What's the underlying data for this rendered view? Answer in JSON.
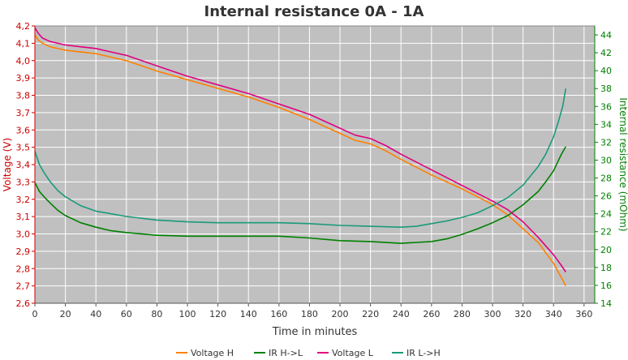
{
  "chart_data": {
    "type": "line",
    "title": "Internal resistance  0A - 1A",
    "xlabel": "Time in minutes",
    "ylabel_left": "Voltage (V)",
    "ylabel_right": "Internal resistance (mOhm)",
    "xlim": [
      0,
      367
    ],
    "xticks": [
      "0",
      "20",
      "40",
      "60",
      "80",
      "100",
      "120",
      "140",
      "160",
      "180",
      "200",
      "220",
      "240",
      "260",
      "280",
      "300",
      "320",
      "340",
      "360"
    ],
    "ylim_left": [
      2.6,
      4.2
    ],
    "yticks_left": [
      "2,6",
      "2,7",
      "2,8",
      "2,9",
      "3,0",
      "3,1",
      "3,2",
      "3,3",
      "3,4",
      "3,5",
      "3,6",
      "3,7",
      "3,8",
      "3,9",
      "4,0",
      "4,1",
      "4,2"
    ],
    "ylim_right": [
      14,
      45
    ],
    "yticks_right": [
      "14",
      "16",
      "18",
      "20",
      "22",
      "24",
      "26",
      "28",
      "30",
      "32",
      "34",
      "36",
      "38",
      "40",
      "42",
      "44"
    ],
    "grid": true,
    "legend_position": "bottom",
    "series": [
      {
        "name": "Voltage H",
        "axis": "left",
        "color": "#ff8000",
        "x": [
          0,
          2,
          5,
          10,
          20,
          30,
          40,
          50,
          60,
          80,
          100,
          120,
          140,
          160,
          180,
          200,
          210,
          220,
          230,
          240,
          260,
          280,
          300,
          310,
          320,
          330,
          340,
          345,
          348
        ],
        "y": [
          4.15,
          4.12,
          4.1,
          4.08,
          4.06,
          4.05,
          4.04,
          4.02,
          4.0,
          3.94,
          3.89,
          3.84,
          3.79,
          3.73,
          3.66,
          3.58,
          3.54,
          3.52,
          3.48,
          3.43,
          3.34,
          3.26,
          3.17,
          3.11,
          3.03,
          2.95,
          2.83,
          2.75,
          2.7
        ]
      },
      {
        "name": "IR H->L",
        "axis": "right",
        "color": "#008000",
        "x": [
          0,
          3,
          6,
          10,
          15,
          20,
          30,
          40,
          50,
          60,
          80,
          100,
          120,
          140,
          160,
          180,
          200,
          220,
          240,
          250,
          260,
          270,
          280,
          290,
          300,
          310,
          320,
          330,
          335,
          340,
          345,
          348
        ],
        "y": [
          27.5,
          26.5,
          25.9,
          25.2,
          24.4,
          23.8,
          23.0,
          22.5,
          22.1,
          21.9,
          21.6,
          21.5,
          21.5,
          21.5,
          21.5,
          21.3,
          21.0,
          20.9,
          20.7,
          20.8,
          20.9,
          21.2,
          21.7,
          22.3,
          23.0,
          23.8,
          25.0,
          26.5,
          27.6,
          28.8,
          30.6,
          31.5
        ]
      },
      {
        "name": "Voltage L",
        "axis": "left",
        "color": "#e0007f",
        "x": [
          0,
          2,
          5,
          10,
          20,
          30,
          40,
          50,
          60,
          80,
          100,
          120,
          140,
          160,
          180,
          200,
          210,
          220,
          230,
          240,
          260,
          280,
          300,
          310,
          320,
          330,
          340,
          345,
          348
        ],
        "y": [
          4.19,
          4.16,
          4.13,
          4.11,
          4.09,
          4.08,
          4.07,
          4.05,
          4.03,
          3.97,
          3.91,
          3.86,
          3.81,
          3.75,
          3.69,
          3.61,
          3.57,
          3.55,
          3.51,
          3.46,
          3.37,
          3.28,
          3.19,
          3.14,
          3.07,
          2.98,
          2.88,
          2.82,
          2.78
        ]
      },
      {
        "name": "IR L->H",
        "axis": "right",
        "color": "#1a9a7a",
        "x": [
          0,
          3,
          6,
          10,
          15,
          20,
          30,
          40,
          50,
          60,
          80,
          100,
          120,
          140,
          160,
          180,
          200,
          220,
          240,
          250,
          260,
          270,
          280,
          290,
          300,
          310,
          320,
          330,
          335,
          340,
          343,
          346,
          348
        ],
        "y": [
          31.0,
          29.5,
          28.6,
          27.6,
          26.6,
          25.9,
          24.9,
          24.3,
          24.0,
          23.7,
          23.3,
          23.1,
          23.0,
          23.0,
          23.0,
          22.9,
          22.7,
          22.6,
          22.5,
          22.6,
          22.9,
          23.2,
          23.6,
          24.1,
          24.9,
          25.8,
          27.2,
          29.3,
          30.7,
          32.6,
          34.2,
          36.0,
          38.0
        ]
      }
    ]
  }
}
